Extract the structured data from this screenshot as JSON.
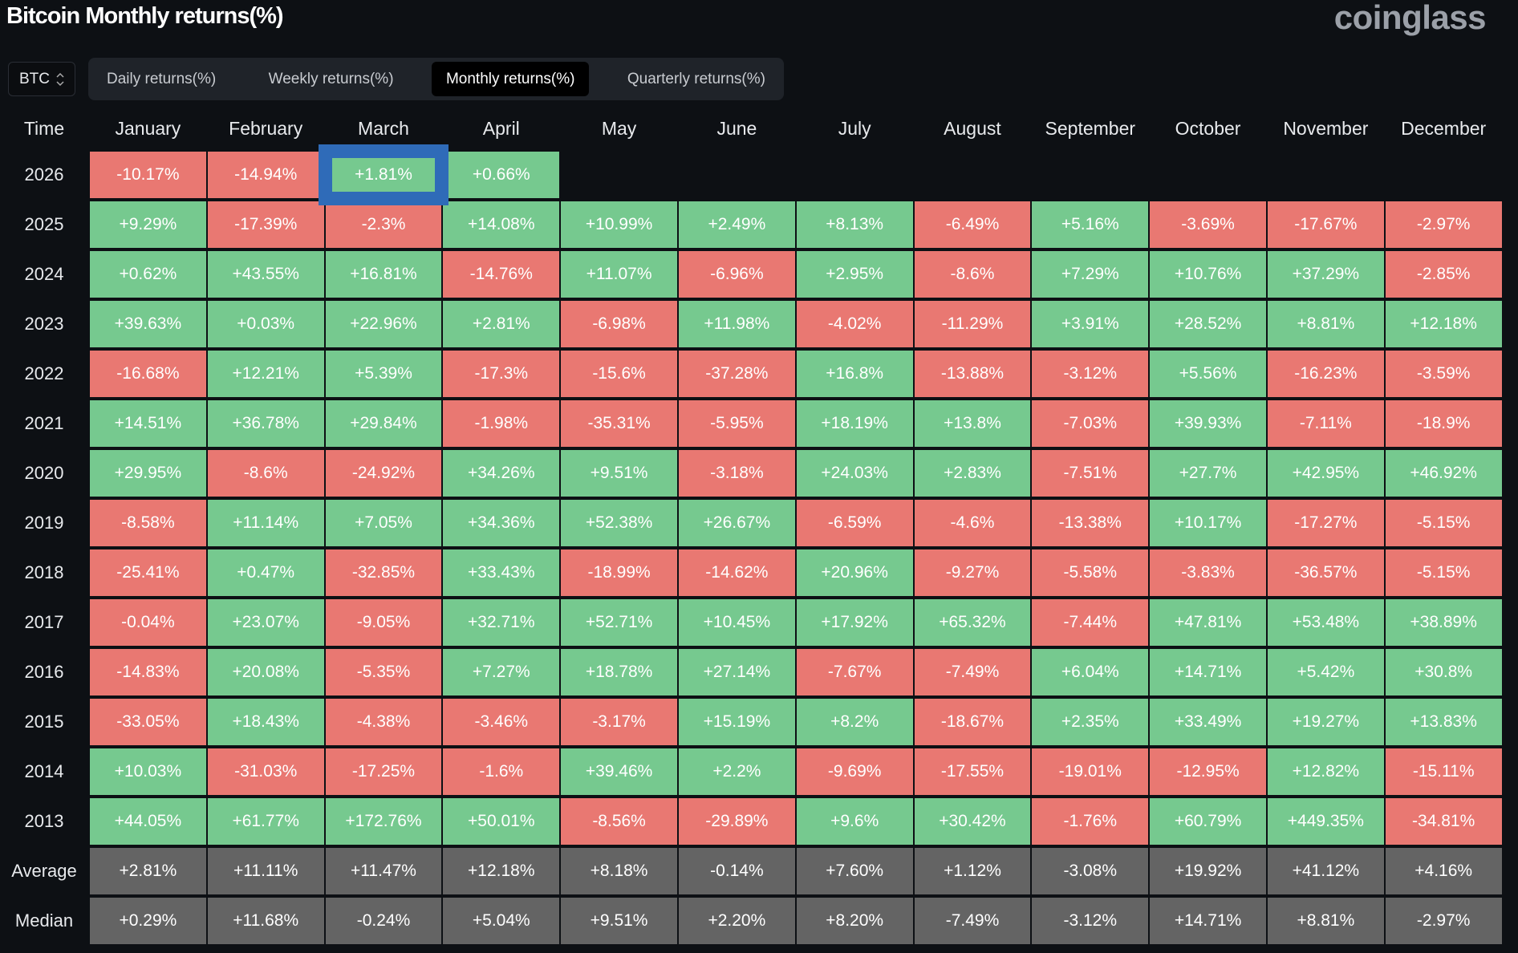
{
  "title": "Bitcoin Monthly returns(%)",
  "logo": "coinglass",
  "asset_select": {
    "value": "BTC"
  },
  "tabs": [
    {
      "label": "Daily returns(%)",
      "active": false
    },
    {
      "label": "Weekly returns(%)",
      "active": false
    },
    {
      "label": "Monthly returns(%)",
      "active": true
    },
    {
      "label": "Quarterly returns(%)",
      "active": false
    }
  ],
  "colors": {
    "positive": "#76c98f",
    "negative": "#e97872",
    "summary": "#646464",
    "highlight": "#2f6bb8"
  },
  "table": {
    "time_header": "Time",
    "months": [
      "January",
      "February",
      "March",
      "April",
      "May",
      "June",
      "July",
      "August",
      "September",
      "October",
      "November",
      "December"
    ],
    "highlight": {
      "year": "2026",
      "month_index": 2
    },
    "rows": [
      {
        "year": "2026",
        "values": [
          "-10.17%",
          "-14.94%",
          "+1.81%",
          "+0.66%"
        ]
      },
      {
        "year": "2025",
        "values": [
          "+9.29%",
          "-17.39%",
          "-2.3%",
          "+14.08%",
          "+10.99%",
          "+2.49%",
          "+8.13%",
          "-6.49%",
          "+5.16%",
          "-3.69%",
          "-17.67%",
          "-2.97%"
        ]
      },
      {
        "year": "2024",
        "values": [
          "+0.62%",
          "+43.55%",
          "+16.81%",
          "-14.76%",
          "+11.07%",
          "-6.96%",
          "+2.95%",
          "-8.6%",
          "+7.29%",
          "+10.76%",
          "+37.29%",
          "-2.85%"
        ]
      },
      {
        "year": "2023",
        "values": [
          "+39.63%",
          "+0.03%",
          "+22.96%",
          "+2.81%",
          "-6.98%",
          "+11.98%",
          "-4.02%",
          "-11.29%",
          "+3.91%",
          "+28.52%",
          "+8.81%",
          "+12.18%"
        ]
      },
      {
        "year": "2022",
        "values": [
          "-16.68%",
          "+12.21%",
          "+5.39%",
          "-17.3%",
          "-15.6%",
          "-37.28%",
          "+16.8%",
          "-13.88%",
          "-3.12%",
          "+5.56%",
          "-16.23%",
          "-3.59%"
        ]
      },
      {
        "year": "2021",
        "values": [
          "+14.51%",
          "+36.78%",
          "+29.84%",
          "-1.98%",
          "-35.31%",
          "-5.95%",
          "+18.19%",
          "+13.8%",
          "-7.03%",
          "+39.93%",
          "-7.11%",
          "-18.9%"
        ]
      },
      {
        "year": "2020",
        "values": [
          "+29.95%",
          "-8.6%",
          "-24.92%",
          "+34.26%",
          "+9.51%",
          "-3.18%",
          "+24.03%",
          "+2.83%",
          "-7.51%",
          "+27.7%",
          "+42.95%",
          "+46.92%"
        ]
      },
      {
        "year": "2019",
        "values": [
          "-8.58%",
          "+11.14%",
          "+7.05%",
          "+34.36%",
          "+52.38%",
          "+26.67%",
          "-6.59%",
          "-4.6%",
          "-13.38%",
          "+10.17%",
          "-17.27%",
          "-5.15%"
        ]
      },
      {
        "year": "2018",
        "values": [
          "-25.41%",
          "+0.47%",
          "-32.85%",
          "+33.43%",
          "-18.99%",
          "-14.62%",
          "+20.96%",
          "-9.27%",
          "-5.58%",
          "-3.83%",
          "-36.57%",
          "-5.15%"
        ]
      },
      {
        "year": "2017",
        "values": [
          "-0.04%",
          "+23.07%",
          "-9.05%",
          "+32.71%",
          "+52.71%",
          "+10.45%",
          "+17.92%",
          "+65.32%",
          "-7.44%",
          "+47.81%",
          "+53.48%",
          "+38.89%"
        ]
      },
      {
        "year": "2016",
        "values": [
          "-14.83%",
          "+20.08%",
          "-5.35%",
          "+7.27%",
          "+18.78%",
          "+27.14%",
          "-7.67%",
          "-7.49%",
          "+6.04%",
          "+14.71%",
          "+5.42%",
          "+30.8%"
        ]
      },
      {
        "year": "2015",
        "values": [
          "-33.05%",
          "+18.43%",
          "-4.38%",
          "-3.46%",
          "-3.17%",
          "+15.19%",
          "+8.2%",
          "-18.67%",
          "+2.35%",
          "+33.49%",
          "+19.27%",
          "+13.83%"
        ]
      },
      {
        "year": "2014",
        "values": [
          "+10.03%",
          "-31.03%",
          "-17.25%",
          "-1.6%",
          "+39.46%",
          "+2.2%",
          "-9.69%",
          "-17.55%",
          "-19.01%",
          "-12.95%",
          "+12.82%",
          "-15.11%"
        ]
      },
      {
        "year": "2013",
        "values": [
          "+44.05%",
          "+61.77%",
          "+172.76%",
          "+50.01%",
          "-8.56%",
          "-29.89%",
          "+9.6%",
          "+30.42%",
          "-1.76%",
          "+60.79%",
          "+449.35%",
          "-34.81%"
        ]
      }
    ],
    "summary": [
      {
        "year": "Average",
        "values": [
          "+2.81%",
          "+11.11%",
          "+11.47%",
          "+12.18%",
          "+8.18%",
          "-0.14%",
          "+7.60%",
          "+1.12%",
          "-3.08%",
          "+19.92%",
          "+41.12%",
          "+4.16%"
        ]
      },
      {
        "year": "Median",
        "values": [
          "+0.29%",
          "+11.68%",
          "-0.24%",
          "+5.04%",
          "+9.51%",
          "+2.20%",
          "+8.20%",
          "-7.49%",
          "-3.12%",
          "+14.71%",
          "+8.81%",
          "-2.97%"
        ]
      }
    ]
  }
}
